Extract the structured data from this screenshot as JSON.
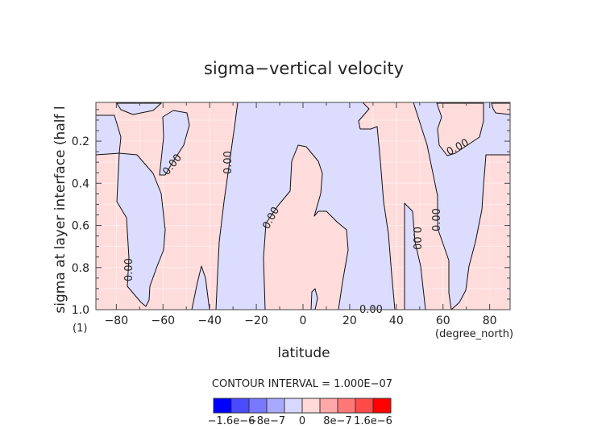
{
  "chart_data": {
    "type": "contour",
    "title": "sigma−vertical velocity",
    "xlabel": "latitude",
    "ylabel": "sigma at layer interface (half l",
    "x_units": "(degree_north)",
    "y_units": "(1)",
    "xlim": [
      -88.75,
      88.75
    ],
    "ylim": [
      1.0,
      0.016
    ],
    "x_ticks": [
      "−80",
      "−60",
      "−40",
      "−20",
      "0",
      "20",
      "40",
      "60",
      "80"
    ],
    "x_tick_values": [
      -80,
      -60,
      -40,
      -20,
      0,
      20,
      40,
      60,
      80
    ],
    "y_ticks": [
      "0.2",
      "0.4",
      "0.6",
      "0.8",
      "1.0"
    ],
    "y_tick_values": [
      0.2,
      0.4,
      0.6,
      0.8,
      1.0
    ],
    "contour_label": "0.00",
    "contour_interval": "CONTOUR INTERVAL = 1.000E−07",
    "colorbar": {
      "colors": [
        "#0000ff",
        "#4a4aff",
        "#7878ff",
        "#a8a8ff",
        "#d8d8ff",
        "#ffd8d8",
        "#ffa8a8",
        "#ff7878",
        "#ff4a4a",
        "#ff0000"
      ],
      "labels": [
        "−1.6e−6",
        "−8e−7",
        "0",
        "8e−7",
        "1.6e−6"
      ]
    },
    "fill_colors": {
      "positive": "#ffdcdc",
      "negative": "#dcdcff"
    }
  }
}
